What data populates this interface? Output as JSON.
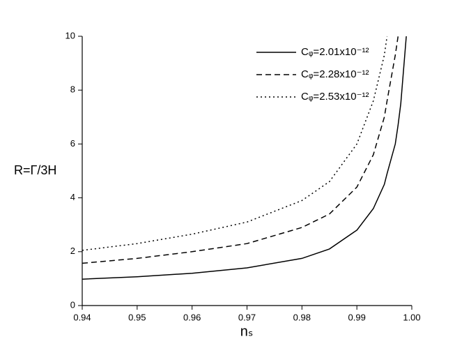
{
  "chart_data": {
    "type": "line",
    "x_label": "nₛ",
    "y_label": "R=Γ/3H",
    "x": [
      0.94,
      0.95,
      0.96,
      0.97,
      0.98,
      0.985,
      0.99,
      0.993,
      0.995,
      0.9955,
      0.997,
      0.9975,
      0.998,
      0.999
    ],
    "series": [
      {
        "name": "Cᵩ=2.01x10⁻¹²",
        "color": "#000000",
        "dash": "solid",
        "values": [
          0.98,
          1.07,
          1.2,
          1.4,
          1.75,
          2.1,
          2.8,
          3.6,
          4.5,
          4.9,
          6.0,
          6.7,
          7.5,
          10
        ]
      },
      {
        "name": "Cᵩ=2.28x10⁻¹²",
        "color": "#000000",
        "dash": "dashed",
        "values": [
          1.57,
          1.75,
          2.0,
          2.3,
          2.9,
          3.4,
          4.4,
          5.6,
          7.0,
          7.6,
          9.3,
          10,
          null,
          null
        ]
      },
      {
        "name": "Cᵩ=2.53x10⁻¹²",
        "color": "#000000",
        "dash": "dotted",
        "values": [
          2.05,
          2.3,
          2.65,
          3.1,
          3.9,
          4.6,
          6.0,
          7.6,
          9.3,
          10,
          null,
          null,
          null,
          null
        ]
      }
    ],
    "xlim": [
      0.94,
      1.0
    ],
    "xticks": [
      0.94,
      0.95,
      0.96,
      0.97,
      0.98,
      0.99,
      {
        "value": 1.0,
        "label": "1.00"
      }
    ],
    "ylim": [
      0,
      10
    ],
    "yticks": [
      0,
      2,
      4,
      6,
      8,
      10
    ],
    "legend": "top-right"
  }
}
